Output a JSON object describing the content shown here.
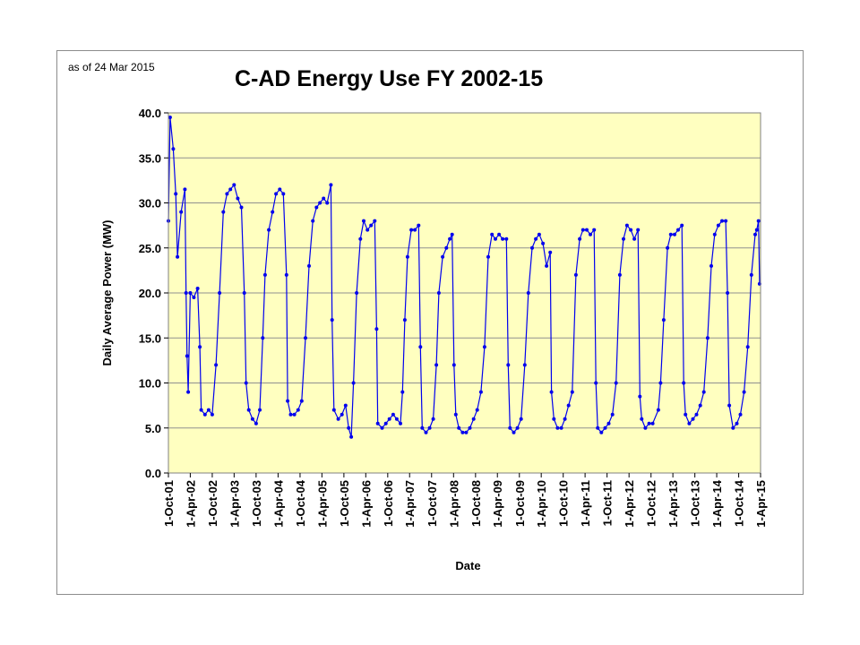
{
  "annotation": "as of 24 Mar 2015",
  "chart_data": {
    "type": "line",
    "title": "C-AD Energy Use FY 2002-15",
    "xlabel": "Date",
    "ylabel": "Daily Average Power (MW)",
    "ylim": [
      0,
      40
    ],
    "yticks": [
      "0.0",
      "5.0",
      "10.0",
      "15.0",
      "20.0",
      "25.0",
      "30.0",
      "35.0",
      "40.0"
    ],
    "xlim": [
      "2001-10-01",
      "2015-04-01"
    ],
    "xticks": [
      {
        "date": "2001-10-01",
        "label": "1-Oct-01"
      },
      {
        "date": "2002-04-01",
        "label": "1-Apr-02"
      },
      {
        "date": "2002-10-01",
        "label": "1-Oct-02"
      },
      {
        "date": "2003-04-01",
        "label": "1-Apr-03"
      },
      {
        "date": "2003-10-01",
        "label": "1-Oct-03"
      },
      {
        "date": "2004-04-01",
        "label": "1-Apr-04"
      },
      {
        "date": "2004-10-01",
        "label": "1-Oct-04"
      },
      {
        "date": "2005-04-01",
        "label": "1-Apr-05"
      },
      {
        "date": "2005-10-01",
        "label": "1-Oct-05"
      },
      {
        "date": "2006-04-01",
        "label": "1-Apr-06"
      },
      {
        "date": "2006-10-01",
        "label": "1-Oct-06"
      },
      {
        "date": "2007-04-01",
        "label": "1-Apr-07"
      },
      {
        "date": "2007-10-01",
        "label": "1-Oct-07"
      },
      {
        "date": "2008-04-01",
        "label": "1-Apr-08"
      },
      {
        "date": "2008-10-01",
        "label": "1-Oct-08"
      },
      {
        "date": "2009-04-01",
        "label": "1-Apr-09"
      },
      {
        "date": "2009-10-01",
        "label": "1-Oct-09"
      },
      {
        "date": "2010-04-01",
        "label": "1-Apr-10"
      },
      {
        "date": "2010-10-01",
        "label": "1-Oct-10"
      },
      {
        "date": "2011-04-01",
        "label": "1-Apr-11"
      },
      {
        "date": "2011-10-01",
        "label": "1-Oct-11"
      },
      {
        "date": "2012-04-01",
        "label": "1-Apr-12"
      },
      {
        "date": "2012-10-01",
        "label": "1-Oct-12"
      },
      {
        "date": "2013-04-01",
        "label": "1-Apr-13"
      },
      {
        "date": "2013-10-01",
        "label": "1-Oct-13"
      },
      {
        "date": "2014-04-01",
        "label": "1-Apr-14"
      },
      {
        "date": "2014-10-01",
        "label": "1-Oct-14"
      },
      {
        "date": "2015-04-01",
        "label": "1-Apr-15"
      }
    ],
    "grid": "horizontal-gridlines",
    "plot_background": "#ffffc0",
    "series_color": "#0000ee",
    "series": [
      {
        "values": [
          [
            "2001-10-01",
            28.0
          ],
          [
            "2001-10-15",
            39.5
          ],
          [
            "2001-11-10",
            36.0
          ],
          [
            "2001-12-01",
            31.0
          ],
          [
            "2001-12-15",
            24.0
          ],
          [
            "2002-01-15",
            29.0
          ],
          [
            "2002-02-15",
            31.5
          ],
          [
            "2002-02-25",
            20.0
          ],
          [
            "2002-03-05",
            13.0
          ],
          [
            "2002-03-15",
            9.0
          ],
          [
            "2002-04-01",
            20.0
          ],
          [
            "2002-05-01",
            19.5
          ],
          [
            "2002-06-01",
            20.5
          ],
          [
            "2002-06-20",
            14.0
          ],
          [
            "2002-07-01",
            7.0
          ],
          [
            "2002-08-01",
            6.5
          ],
          [
            "2002-09-01",
            7.0
          ],
          [
            "2002-10-01",
            6.5
          ],
          [
            "2002-11-01",
            12.0
          ],
          [
            "2002-12-01",
            20.0
          ],
          [
            "2003-01-01",
            29.0
          ],
          [
            "2003-02-01",
            31.0
          ],
          [
            "2003-03-01",
            31.5
          ],
          [
            "2003-04-01",
            32.0
          ],
          [
            "2003-05-01",
            30.5
          ],
          [
            "2003-06-01",
            29.5
          ],
          [
            "2003-06-25",
            20.0
          ],
          [
            "2003-07-10",
            10.0
          ],
          [
            "2003-08-01",
            7.0
          ],
          [
            "2003-09-01",
            6.0
          ],
          [
            "2003-10-01",
            5.5
          ],
          [
            "2003-11-01",
            7.0
          ],
          [
            "2003-11-25",
            15.0
          ],
          [
            "2003-12-15",
            22.0
          ],
          [
            "2004-01-15",
            27.0
          ],
          [
            "2004-02-15",
            29.0
          ],
          [
            "2004-03-15",
            31.0
          ],
          [
            "2004-04-15",
            31.5
          ],
          [
            "2004-05-15",
            31.0
          ],
          [
            "2004-06-10",
            22.0
          ],
          [
            "2004-06-20",
            8.0
          ],
          [
            "2004-07-15",
            6.5
          ],
          [
            "2004-08-15",
            6.5
          ],
          [
            "2004-09-15",
            7.0
          ],
          [
            "2004-10-15",
            8.0
          ],
          [
            "2004-11-15",
            15.0
          ],
          [
            "2004-12-15",
            23.0
          ],
          [
            "2005-01-15",
            28.0
          ],
          [
            "2005-02-15",
            29.5
          ],
          [
            "2005-03-15",
            30.0
          ],
          [
            "2005-04-15",
            30.5
          ],
          [
            "2005-05-15",
            30.0
          ],
          [
            "2005-06-15",
            32.0
          ],
          [
            "2005-06-25",
            17.0
          ],
          [
            "2005-07-10",
            7.0
          ],
          [
            "2005-08-15",
            6.0
          ],
          [
            "2005-09-15",
            6.5
          ],
          [
            "2005-10-15",
            7.5
          ],
          [
            "2005-11-10",
            5.0
          ],
          [
            "2005-12-01",
            4.0
          ],
          [
            "2005-12-20",
            10.0
          ],
          [
            "2006-01-15",
            20.0
          ],
          [
            "2006-02-15",
            26.0
          ],
          [
            "2006-03-15",
            28.0
          ],
          [
            "2006-04-15",
            27.0
          ],
          [
            "2006-05-15",
            27.5
          ],
          [
            "2006-06-15",
            28.0
          ],
          [
            "2006-06-30",
            16.0
          ],
          [
            "2006-07-10",
            5.5
          ],
          [
            "2006-08-15",
            5.0
          ],
          [
            "2006-09-15",
            5.5
          ],
          [
            "2006-10-15",
            6.0
          ],
          [
            "2006-11-15",
            6.5
          ],
          [
            "2006-12-15",
            6.0
          ],
          [
            "2007-01-15",
            5.5
          ],
          [
            "2007-02-01",
            9.0
          ],
          [
            "2007-02-20",
            17.0
          ],
          [
            "2007-03-15",
            24.0
          ],
          [
            "2007-04-15",
            27.0
          ],
          [
            "2007-05-15",
            27.0
          ],
          [
            "2007-06-15",
            27.5
          ],
          [
            "2007-06-30",
            14.0
          ],
          [
            "2007-07-15",
            5.0
          ],
          [
            "2007-08-15",
            4.5
          ],
          [
            "2007-09-15",
            5.0
          ],
          [
            "2007-10-15",
            6.0
          ],
          [
            "2007-11-10",
            12.0
          ],
          [
            "2007-12-01",
            20.0
          ],
          [
            "2008-01-01",
            24.0
          ],
          [
            "2008-02-01",
            25.0
          ],
          [
            "2008-03-01",
            26.0
          ],
          [
            "2008-03-20",
            26.5
          ],
          [
            "2008-04-05",
            12.0
          ],
          [
            "2008-04-20",
            6.5
          ],
          [
            "2008-05-15",
            5.0
          ],
          [
            "2008-06-15",
            4.5
          ],
          [
            "2008-07-15",
            4.5
          ],
          [
            "2008-08-15",
            5.0
          ],
          [
            "2008-09-15",
            6.0
          ],
          [
            "2008-10-15",
            7.0
          ],
          [
            "2008-11-15",
            9.0
          ],
          [
            "2008-12-15",
            14.0
          ],
          [
            "2009-01-15",
            24.0
          ],
          [
            "2009-02-15",
            26.5
          ],
          [
            "2009-03-15",
            26.0
          ],
          [
            "2009-04-15",
            26.5
          ],
          [
            "2009-05-15",
            26.0
          ],
          [
            "2009-06-15",
            26.0
          ],
          [
            "2009-06-30",
            12.0
          ],
          [
            "2009-07-15",
            5.0
          ],
          [
            "2009-08-15",
            4.5
          ],
          [
            "2009-09-15",
            5.0
          ],
          [
            "2009-10-15",
            6.0
          ],
          [
            "2009-11-15",
            12.0
          ],
          [
            "2009-12-15",
            20.0
          ],
          [
            "2010-01-15",
            25.0
          ],
          [
            "2010-02-15",
            26.0
          ],
          [
            "2010-03-15",
            26.5
          ],
          [
            "2010-04-15",
            25.5
          ],
          [
            "2010-05-15",
            23.0
          ],
          [
            "2010-06-15",
            24.5
          ],
          [
            "2010-06-25",
            9.0
          ],
          [
            "2010-07-15",
            6.0
          ],
          [
            "2010-08-15",
            5.0
          ],
          [
            "2010-09-15",
            5.0
          ],
          [
            "2010-10-15",
            6.0
          ],
          [
            "2010-11-15",
            7.5
          ],
          [
            "2010-12-15",
            9.0
          ],
          [
            "2011-01-15",
            22.0
          ],
          [
            "2011-02-15",
            26.0
          ],
          [
            "2011-03-15",
            27.0
          ],
          [
            "2011-04-15",
            27.0
          ],
          [
            "2011-05-15",
            26.5
          ],
          [
            "2011-06-15",
            27.0
          ],
          [
            "2011-06-30",
            10.0
          ],
          [
            "2011-07-15",
            5.0
          ],
          [
            "2011-08-15",
            4.5
          ],
          [
            "2011-09-15",
            5.0
          ],
          [
            "2011-10-15",
            5.5
          ],
          [
            "2011-11-15",
            6.5
          ],
          [
            "2011-12-15",
            10.0
          ],
          [
            "2012-01-15",
            22.0
          ],
          [
            "2012-02-15",
            26.0
          ],
          [
            "2012-03-15",
            27.5
          ],
          [
            "2012-04-15",
            27.0
          ],
          [
            "2012-05-15",
            26.0
          ],
          [
            "2012-06-15",
            27.0
          ],
          [
            "2012-06-30",
            8.5
          ],
          [
            "2012-07-15",
            6.0
          ],
          [
            "2012-08-15",
            5.0
          ],
          [
            "2012-09-15",
            5.5
          ],
          [
            "2012-10-15",
            5.5
          ],
          [
            "2012-12-01",
            7.0
          ],
          [
            "2012-12-20",
            10.0
          ],
          [
            "2013-01-15",
            17.0
          ],
          [
            "2013-02-15",
            25.0
          ],
          [
            "2013-03-15",
            26.5
          ],
          [
            "2013-04-15",
            26.5
          ],
          [
            "2013-05-15",
            27.0
          ],
          [
            "2013-06-15",
            27.5
          ],
          [
            "2013-06-30",
            10.0
          ],
          [
            "2013-07-15",
            6.5
          ],
          [
            "2013-08-15",
            5.5
          ],
          [
            "2013-09-15",
            6.0
          ],
          [
            "2013-10-15",
            6.5
          ],
          [
            "2013-11-15",
            7.5
          ],
          [
            "2013-12-15",
            9.0
          ],
          [
            "2014-01-15",
            15.0
          ],
          [
            "2014-02-15",
            23.0
          ],
          [
            "2014-03-15",
            26.5
          ],
          [
            "2014-04-15",
            27.5
          ],
          [
            "2014-05-15",
            28.0
          ],
          [
            "2014-06-15",
            28.0
          ],
          [
            "2014-06-30",
            20.0
          ],
          [
            "2014-07-15",
            7.5
          ],
          [
            "2014-08-15",
            5.0
          ],
          [
            "2014-09-15",
            5.5
          ],
          [
            "2014-10-15",
            6.5
          ],
          [
            "2014-11-15",
            9.0
          ],
          [
            "2014-12-15",
            14.0
          ],
          [
            "2015-01-15",
            22.0
          ],
          [
            "2015-02-15",
            26.5
          ],
          [
            "2015-03-01",
            27.0
          ],
          [
            "2015-03-15",
            28.0
          ],
          [
            "2015-03-24",
            21.0
          ]
        ]
      }
    ]
  }
}
